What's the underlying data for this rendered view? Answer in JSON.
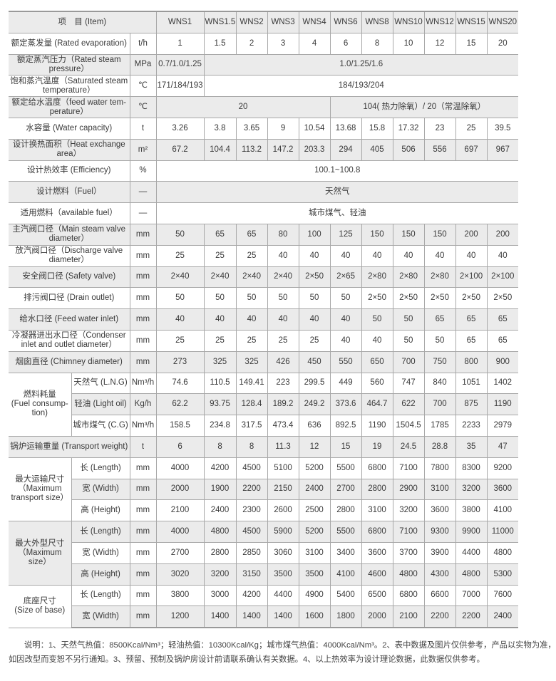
{
  "header": {
    "item": "项　目 (Item)",
    "models": [
      "WNS1",
      "WNS1.5",
      "WNS2",
      "WNS3",
      "WNS4",
      "WNS6",
      "WNS8",
      "WNS10",
      "WNS12",
      "WNS15",
      "WNS20"
    ]
  },
  "rows": [
    {
      "label": "额定蒸发量 (Rated evaporation)",
      "unit": "t/h",
      "values": [
        "1",
        "1.5",
        "2",
        "3",
        "4",
        "6",
        "8",
        "10",
        "12",
        "15",
        "20"
      ]
    },
    {
      "label": "额定蒸汽压力（Rated steam\npressure）",
      "unit": "MPa",
      "spans": [
        {
          "value": "0.7/1.0/1.25",
          "span": 1
        },
        {
          "value": "1.0/1.25/1.6",
          "span": 10
        }
      ]
    },
    {
      "label": "饱和蒸汽温度（Saturated steam\ntemperature）",
      "unit": "℃",
      "spans": [
        {
          "value": "171/184/193",
          "span": 1
        },
        {
          "value": "184/193/204",
          "span": 10
        }
      ]
    },
    {
      "label": "额定给水温度（feed water tem-\nperature）",
      "unit": "℃",
      "spans": [
        {
          "value": "20",
          "span": 5
        },
        {
          "value": "104( 热力除氧）/ 20（常温除氧）",
          "span": 6
        }
      ]
    },
    {
      "label": "水容量 (Water capacity)",
      "unit": "t",
      "values": [
        "3.26",
        "3.8",
        "3.65",
        "9",
        "10.54",
        "13.68",
        "15.8",
        "17.32",
        "23",
        "25",
        "39.5"
      ]
    },
    {
      "label": "设计换热面积（Heat exchange\narea）",
      "unit": "m²",
      "values": [
        "67.2",
        "104.4",
        "113.2",
        "147.2",
        "203.3",
        "294",
        "405",
        "506",
        "556",
        "697",
        "967"
      ]
    },
    {
      "label": "设计热效率 (Efficiency)",
      "unit": "%",
      "spans": [
        {
          "value": "100.1~100.8",
          "span": 11
        }
      ]
    },
    {
      "label": "设计燃料（Fuel）",
      "unit": "—",
      "spans": [
        {
          "value": "天然气",
          "span": 11
        }
      ]
    },
    {
      "label": "适用燃料（available fuel）",
      "unit": "—",
      "spans": [
        {
          "value": "城市煤气、轻油",
          "span": 11
        }
      ]
    },
    {
      "label": "主汽阀口径（Main steam valve\ndiameter）",
      "unit": "mm",
      "values": [
        "50",
        "65",
        "65",
        "80",
        "100",
        "125",
        "150",
        "150",
        "150",
        "200",
        "200"
      ]
    },
    {
      "label": "放汽阀口径（Discharge valve\ndiameter）",
      "unit": "mm",
      "values": [
        "25",
        "25",
        "25",
        "40",
        "40",
        "40",
        "40",
        "40",
        "40",
        "40",
        "40"
      ]
    },
    {
      "label": "安全阀口径 (Safety valve)",
      "unit": "mm",
      "values": [
        "2×40",
        "2×40",
        "2×40",
        "2×40",
        "2×50",
        "2×65",
        "2×80",
        "2×80",
        "2×80",
        "2×100",
        "2×100"
      ]
    },
    {
      "label": "排污阀口径 (Drain outlet)",
      "unit": "mm",
      "values": [
        "50",
        "50",
        "50",
        "50",
        "50",
        "50",
        "2×50",
        "2×50",
        "2×50",
        "2×50",
        "2×50"
      ]
    },
    {
      "label": "给水口径 (Feed water inlet)",
      "unit": "mm",
      "values": [
        "40",
        "40",
        "40",
        "40",
        "40",
        "40",
        "50",
        "50",
        "65",
        "65",
        "65"
      ]
    },
    {
      "label": "冷凝器进出水口径（Condenser\ninlet and outlet diameter）",
      "unit": "mm",
      "values": [
        "25",
        "25",
        "25",
        "25",
        "25",
        "40",
        "40",
        "50",
        "50",
        "65",
        "65"
      ]
    },
    {
      "label": "烟囱直径 (Chimney diameter)",
      "unit": "mm",
      "values": [
        "273",
        "325",
        "325",
        "426",
        "450",
        "550",
        "650",
        "700",
        "750",
        "800",
        "900"
      ]
    },
    {
      "group": "燃料耗量\n(Fuel consump-\ntion)",
      "sub": [
        {
          "label": "天然气 (L.N.G)",
          "unit": "Nm³/h",
          "values": [
            "74.6",
            "110.5",
            "149.41",
            "223",
            "299.5",
            "449",
            "560",
            "747",
            "840",
            "1051",
            "1402"
          ]
        },
        {
          "label": "轻油 (Light oil)",
          "unit": "Kg/h",
          "values": [
            "62.2",
            "93.75",
            "128.4",
            "189.2",
            "249.2",
            "373.6",
            "464.7",
            "622",
            "700",
            "875",
            "1190"
          ]
        },
        {
          "label": "城市煤气 (C.G)",
          "unit": "Nm³/h",
          "values": [
            "158.5",
            "234.8",
            "317.5",
            "473.4",
            "636",
            "892.5",
            "1190",
            "1504.5",
            "1785",
            "2233",
            "2979"
          ]
        }
      ]
    },
    {
      "label": "锅炉运输重量 (Transport weight)",
      "unit": "t",
      "values": [
        "6",
        "8",
        "8",
        "11.3",
        "12",
        "15",
        "19",
        "24.5",
        "28.8",
        "35",
        "47"
      ]
    },
    {
      "group": "最大运输尺寸\n（Maximum\ntransport size）",
      "sub": [
        {
          "label": "长 (Length)",
          "unit": "mm",
          "values": [
            "4000",
            "4200",
            "4500",
            "5100",
            "5200",
            "5500",
            "6800",
            "7100",
            "7800",
            "8300",
            "9200"
          ]
        },
        {
          "label": "宽 (Width)",
          "unit": "mm",
          "values": [
            "2000",
            "1900",
            "2200",
            "2150",
            "2400",
            "2700",
            "2800",
            "2900",
            "3100",
            "3200",
            "3600"
          ]
        },
        {
          "label": "高 (Height)",
          "unit": "mm",
          "values": [
            "2100",
            "2400",
            "2300",
            "2600",
            "2500",
            "2800",
            "3100",
            "3200",
            "3600",
            "3800",
            "4100"
          ]
        }
      ]
    },
    {
      "group": "最大外型尺寸\n（Maximum\nsize）",
      "sub": [
        {
          "label": "长 (Length)",
          "unit": "mm",
          "values": [
            "4000",
            "4800",
            "4500",
            "5900",
            "5200",
            "5500",
            "6800",
            "7100",
            "9300",
            "9900",
            "11000"
          ]
        },
        {
          "label": "宽 (Width)",
          "unit": "mm",
          "values": [
            "2700",
            "2800",
            "2850",
            "3060",
            "3100",
            "3400",
            "3600",
            "3700",
            "3900",
            "4400",
            "4800"
          ]
        },
        {
          "label": "高 (Height)",
          "unit": "mm",
          "values": [
            "3020",
            "3200",
            "3150",
            "3500",
            "3500",
            "4100",
            "4600",
            "4800",
            "4300",
            "4800",
            "5300"
          ]
        }
      ]
    },
    {
      "group": "底座尺寸\n(Size of base)",
      "sub": [
        {
          "label": "长 (Length)",
          "unit": "mm",
          "values": [
            "3800",
            "3000",
            "4200",
            "4400",
            "4900",
            "5400",
            "6500",
            "6800",
            "6600",
            "7000",
            "7600"
          ]
        },
        {
          "label": "宽 (Width)",
          "unit": "mm",
          "values": [
            "1200",
            "1400",
            "1400",
            "1400",
            "1600",
            "1800",
            "2000",
            "2100",
            "2200",
            "2200",
            "2400"
          ]
        }
      ]
    }
  ],
  "notes": {
    "line1": "说明：1、天然气热值：8500Kcal/Nm³；轻油热值：10300Kcal/Kg；城市煤气热值：4000Kcal/Nm³。2、表中数据及图片仅供参考，产品以实物为准，",
    "line2": "如因改型而变恕不另行通知。3、预留、预制及锅炉房设计前请联系确认有关数据。4、以上热效率为设计理论数据，此数据仅供参考。"
  }
}
